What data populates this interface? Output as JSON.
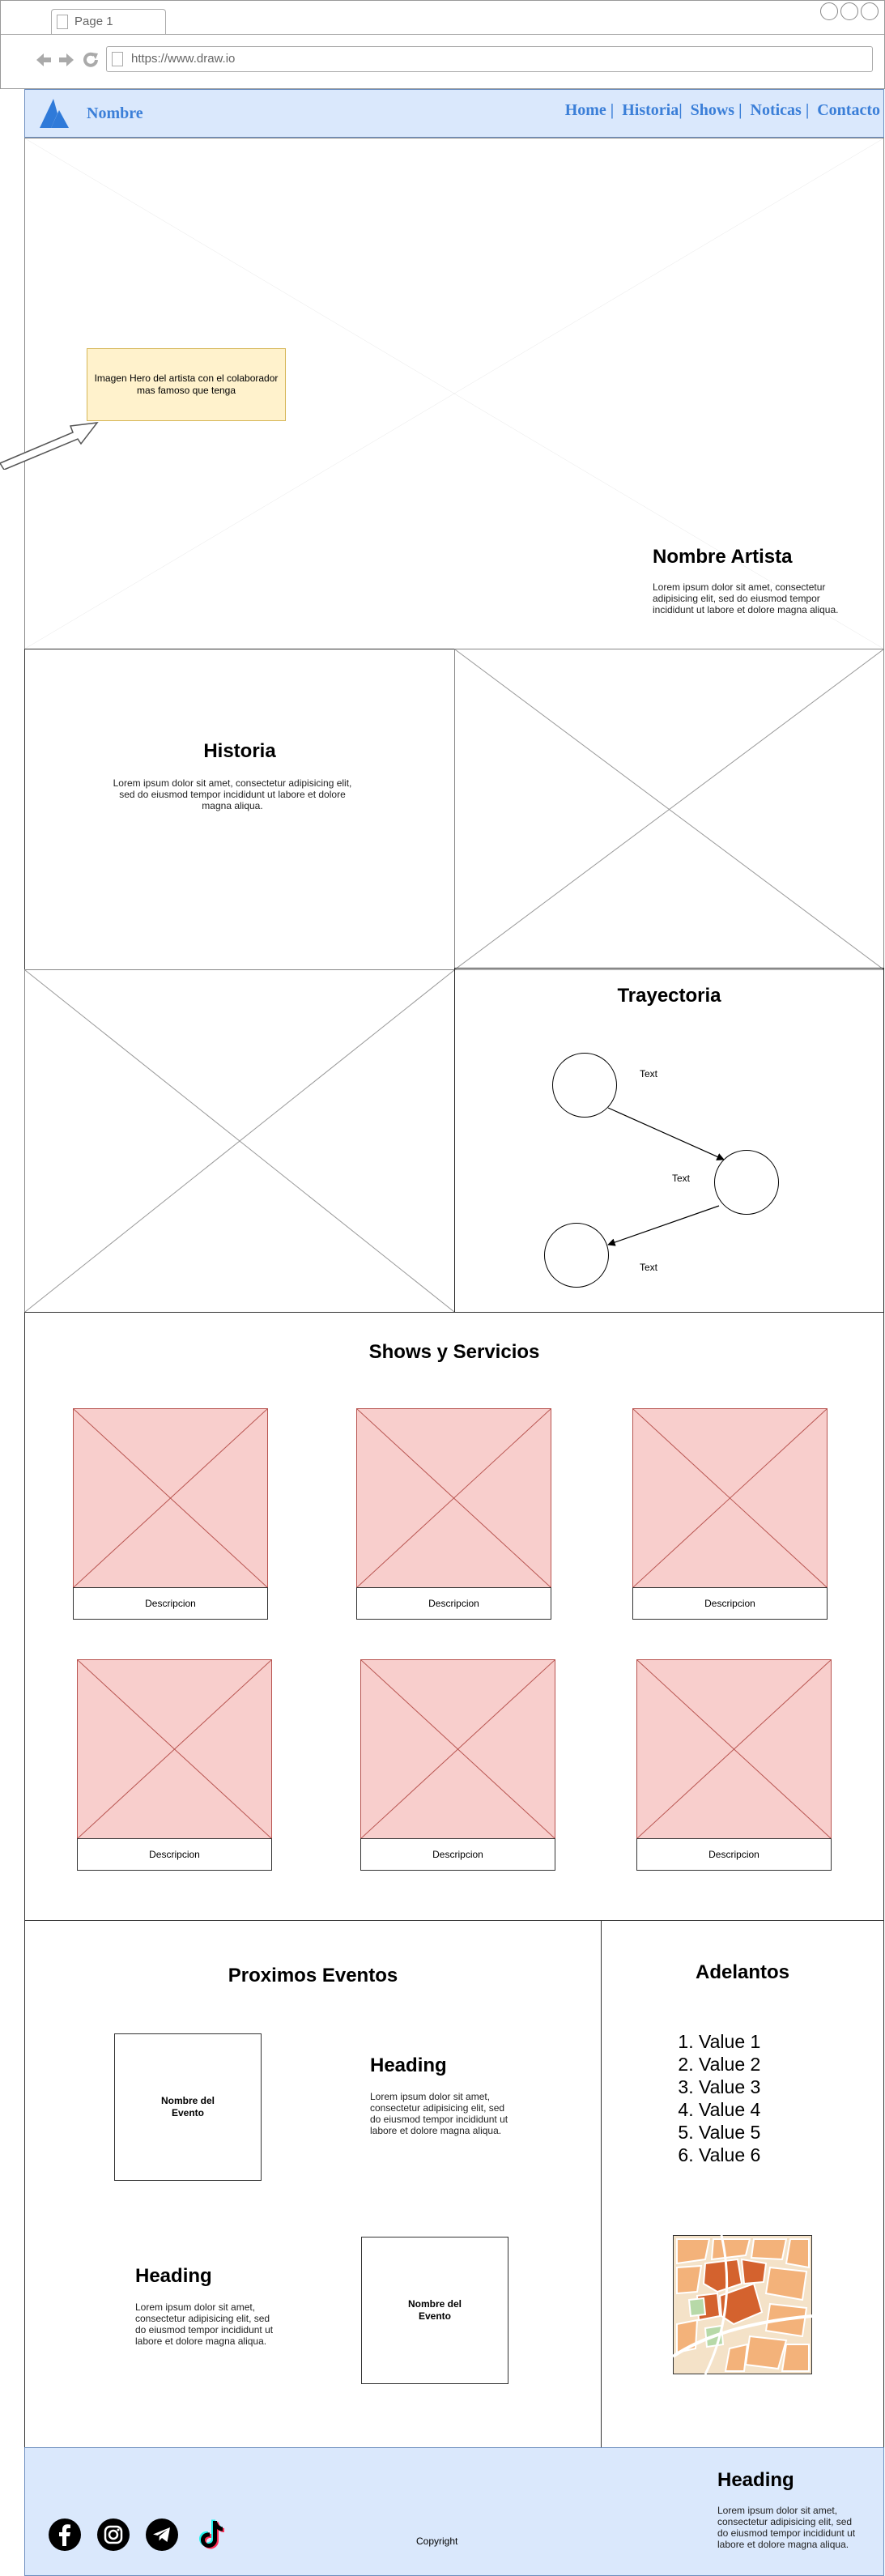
{
  "browser": {
    "tab_title": "Page 1",
    "url": "https://www.draw.io"
  },
  "header": {
    "logo_text": "Nombre",
    "nav": [
      "Home |",
      "Historia|",
      "Shows |",
      "Noticas |",
      "Contacto"
    ],
    "bg_color": "#dae8fc",
    "link_color": "#3b7fd8"
  },
  "hero": {
    "note": "Imagen Hero del artista con el colaborador mas famoso que tenga",
    "title": "Nombre Artista",
    "body": "Lorem ipsum dolor sit amet, consectetur adipisicing elit, sed do eiusmod tempor incididunt ut labore et dolore magna aliqua."
  },
  "historia": {
    "title": "Historia",
    "body": "Lorem ipsum dolor sit amet, consectetur adipisicing elit, sed do eiusmod tempor incididunt ut labore et dolore magna aliqua."
  },
  "trayectoria": {
    "title": "Trayectoria",
    "labels": [
      "Text",
      "Text",
      "Text"
    ]
  },
  "shows": {
    "title": "Shows y Servicios",
    "captions": [
      "Descripcion",
      "Descripcion",
      "Descripcion",
      "Descripcion",
      "Descripcion",
      "Descripcion"
    ],
    "card_fill": "#f8cecc",
    "card_stroke": "#b85450"
  },
  "eventos": {
    "title": "Proximos Eventos",
    "event_box_1": "Nombre del Evento",
    "event_box_2": "Nombre del Evento",
    "heading_1": "Heading",
    "body_1": "Lorem ipsum dolor sit amet, consectetur adipisicing elit, sed do eiusmod tempor incididunt ut labore et dolore magna aliqua.",
    "heading_2": "Heading",
    "body_2": "Lorem ipsum dolor sit amet, consectetur adipisicing elit, sed do eiusmod tempor incididunt ut labore et dolore magna aliqua."
  },
  "adelantos": {
    "title": "Adelantos",
    "items": [
      "Value 1",
      "Value 2",
      "Value 3",
      "Value 4",
      "Value 5",
      "Value 6"
    ]
  },
  "footer": {
    "copyright": "Copyright",
    "heading": "Heading",
    "body": "Lorem ipsum dolor sit amet, consectetur adipisicing elit, sed do eiusmod tempor incididunt ut labore et dolore magna aliqua.",
    "icons": [
      "facebook-icon",
      "instagram-icon",
      "telegram-icon",
      "tiktok-icon"
    ],
    "bg_color": "#dae8fc"
  }
}
